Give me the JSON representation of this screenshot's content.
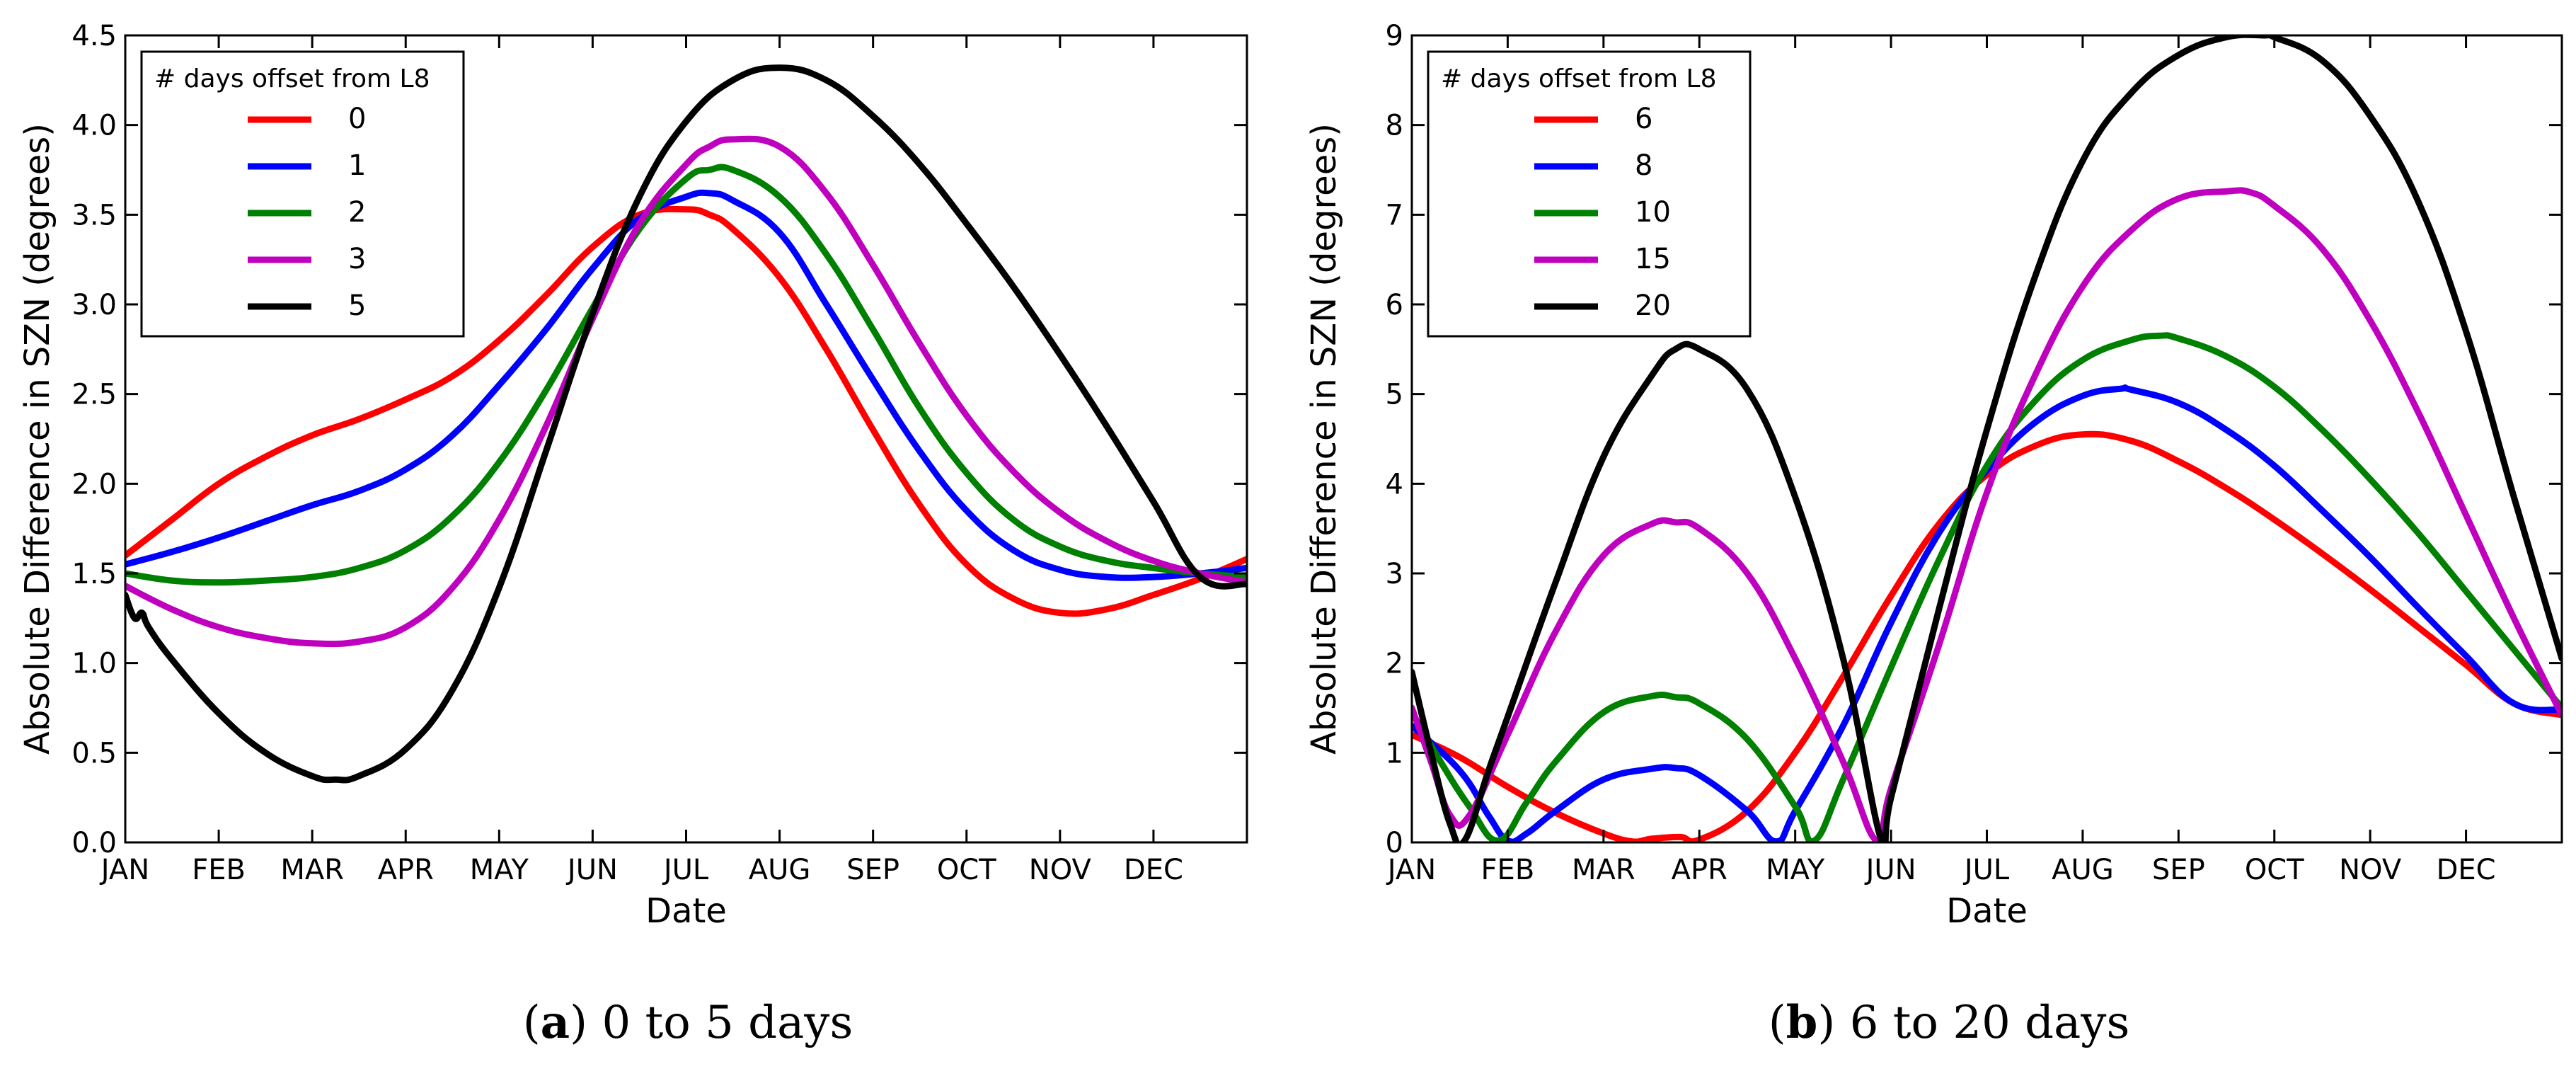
{
  "chart_data": [
    {
      "type": "line",
      "panel_label": "a",
      "caption": "0 to 5 days",
      "xlabel": "Date",
      "ylabel": "Absolute Difference in SZN (degrees)",
      "xlim": [
        0,
        12
      ],
      "ylim": [
        0,
        4.5
      ],
      "x_ticks": [
        0,
        1,
        2,
        3,
        4,
        5,
        6,
        7,
        8,
        9,
        10,
        11
      ],
      "x_tick_labels": [
        "JAN",
        "FEB",
        "MAR",
        "APR",
        "MAY",
        "JUN",
        "JUL",
        "AUG",
        "SEP",
        "OCT",
        "NOV",
        "DEC"
      ],
      "y_ticks": [
        0,
        0.5,
        1,
        1.5,
        2,
        2.5,
        3,
        3.5,
        4,
        4.5
      ],
      "y_tick_labels": [
        "0.0",
        "0.5",
        "1.0",
        "1.5",
        "2.0",
        "2.5",
        "3.0",
        "3.5",
        "4.0",
        "4.5"
      ],
      "grid": false,
      "legend": {
        "title": "# days offset from L8",
        "position": "top-left"
      },
      "series": [
        {
          "name": "0",
          "color": "#ff0000",
          "x": [
            0,
            0.5,
            1,
            1.5,
            2,
            2.5,
            3,
            3.5,
            4,
            4.5,
            5,
            5.5,
            6,
            6.25,
            6.5,
            7,
            7.5,
            8,
            8.5,
            9,
            9.5,
            10,
            10.5,
            11,
            11.5,
            12
          ],
          "y": [
            1.6,
            1.8,
            2.0,
            2.15,
            2.27,
            2.36,
            2.47,
            2.6,
            2.8,
            3.05,
            3.32,
            3.5,
            3.53,
            3.5,
            3.42,
            3.15,
            2.75,
            2.3,
            1.88,
            1.55,
            1.36,
            1.28,
            1.3,
            1.38,
            1.47,
            1.58
          ]
        },
        {
          "name": "1",
          "color": "#0000ff",
          "x": [
            0,
            0.5,
            1,
            1.5,
            2,
            2.5,
            3,
            3.5,
            4,
            4.5,
            5,
            5.5,
            6,
            6.25,
            6.5,
            7,
            7.5,
            8,
            8.5,
            9,
            9.5,
            10,
            10.5,
            11,
            11.5,
            12
          ],
          "y": [
            1.55,
            1.62,
            1.7,
            1.79,
            1.88,
            1.96,
            2.08,
            2.27,
            2.55,
            2.86,
            3.2,
            3.48,
            3.6,
            3.62,
            3.58,
            3.4,
            3.0,
            2.58,
            2.18,
            1.85,
            1.63,
            1.52,
            1.48,
            1.48,
            1.5,
            1.53
          ]
        },
        {
          "name": "2",
          "color": "#008000",
          "x": [
            0,
            0.5,
            1,
            1.5,
            2,
            2.5,
            3,
            3.5,
            4,
            4.5,
            5,
            5.5,
            6,
            6.25,
            6.5,
            7,
            7.5,
            8,
            8.5,
            9,
            9.5,
            10,
            10.5,
            11,
            11.5,
            12
          ],
          "y": [
            1.5,
            1.46,
            1.45,
            1.46,
            1.48,
            1.53,
            1.63,
            1.82,
            2.12,
            2.52,
            2.98,
            3.42,
            3.7,
            3.75,
            3.75,
            3.6,
            3.28,
            2.86,
            2.42,
            2.06,
            1.8,
            1.65,
            1.57,
            1.53,
            1.5,
            1.48
          ]
        },
        {
          "name": "3",
          "color": "#bf00bf",
          "x": [
            0,
            0.5,
            1,
            1.5,
            2,
            2.5,
            3,
            3.5,
            4,
            4.5,
            5,
            5.5,
            6,
            6.25,
            6.5,
            7,
            7.5,
            8,
            8.5,
            9,
            9.5,
            10,
            10.5,
            11,
            11.5,
            12
          ],
          "y": [
            1.43,
            1.3,
            1.2,
            1.14,
            1.11,
            1.12,
            1.2,
            1.42,
            1.8,
            2.32,
            2.92,
            3.45,
            3.78,
            3.88,
            3.92,
            3.88,
            3.62,
            3.22,
            2.78,
            2.38,
            2.07,
            1.84,
            1.68,
            1.57,
            1.5,
            1.45
          ]
        },
        {
          "name": "5",
          "color": "#000000",
          "x": [
            0,
            0.1,
            0.18,
            0.25,
            0.5,
            1,
            1.5,
            2,
            2.25,
            2.5,
            3,
            3.5,
            4,
            4.5,
            5,
            5.5,
            6,
            6.5,
            7,
            7.5,
            8,
            8.5,
            9,
            9.5,
            10,
            10.5,
            11,
            11.5,
            12
          ],
          "y": [
            1.38,
            1.25,
            1.28,
            1.2,
            1.02,
            0.72,
            0.5,
            0.37,
            0.35,
            0.37,
            0.52,
            0.85,
            1.42,
            2.18,
            2.95,
            3.6,
            4.02,
            4.25,
            4.32,
            4.25,
            4.05,
            3.78,
            3.45,
            3.1,
            2.72,
            2.32,
            1.9,
            1.48,
            1.44
          ]
        }
      ]
    },
    {
      "type": "line",
      "panel_label": "b",
      "caption": "6 to 20 days",
      "xlabel": "Date",
      "ylabel": "Absolute Difference in SZN (degrees)",
      "xlim": [
        0,
        12
      ],
      "ylim": [
        0,
        9
      ],
      "x_ticks": [
        0,
        1,
        2,
        3,
        4,
        5,
        6,
        7,
        8,
        9,
        10,
        11
      ],
      "x_tick_labels": [
        "JAN",
        "FEB",
        "MAR",
        "APR",
        "MAY",
        "JUN",
        "JUL",
        "AUG",
        "SEP",
        "OCT",
        "NOV",
        "DEC"
      ],
      "y_ticks": [
        0,
        1,
        2,
        3,
        4,
        5,
        6,
        7,
        8,
        9
      ],
      "y_tick_labels": [
        "0",
        "1",
        "2",
        "3",
        "4",
        "5",
        "6",
        "7",
        "8",
        "9"
      ],
      "grid": false,
      "legend": {
        "title": "# days offset from L8",
        "position": "top-left"
      },
      "series": [
        {
          "name": "6",
          "color": "#ff0000",
          "x": [
            0,
            0.5,
            1,
            1.5,
            2,
            2.3,
            2.5,
            2.8,
            3,
            3.5,
            4,
            4.5,
            5,
            5.5,
            6,
            6.5,
            7,
            7.5,
            8,
            8.5,
            9,
            9.5,
            10,
            10.5,
            11,
            11.5,
            12
          ],
          "y": [
            1.2,
            0.95,
            0.62,
            0.33,
            0.1,
            0.01,
            0.04,
            0.06,
            0.03,
            0.35,
            1.0,
            1.85,
            2.75,
            3.55,
            4.1,
            4.42,
            4.55,
            4.48,
            4.25,
            3.95,
            3.6,
            3.22,
            2.82,
            2.4,
            1.98,
            1.55,
            1.42
          ]
        },
        {
          "name": "8",
          "color": "#0000ff",
          "x": [
            0,
            0.5,
            0.8,
            1,
            1.2,
            1.5,
            2,
            2.5,
            2.75,
            3,
            3.5,
            3.8,
            4,
            4.5,
            5,
            5.5,
            6,
            6.5,
            7,
            7.4,
            7.5,
            8,
            8.5,
            9,
            9.5,
            10,
            10.5,
            11,
            11.5,
            12
          ],
          "y": [
            1.3,
            0.8,
            0.3,
            0.02,
            0.1,
            0.35,
            0.7,
            0.82,
            0.83,
            0.75,
            0.35,
            0.01,
            0.35,
            1.3,
            2.45,
            3.45,
            4.15,
            4.68,
            4.98,
            5.06,
            5.05,
            4.9,
            4.6,
            4.2,
            3.7,
            3.18,
            2.62,
            2.08,
            1.55,
            1.48
          ]
        },
        {
          "name": "10",
          "color": "#008000",
          "x": [
            0,
            0.3,
            0.6,
            0.9,
            1.2,
            1.5,
            2,
            2.5,
            2.75,
            3,
            3.5,
            4,
            4.2,
            4.5,
            5,
            5.5,
            6,
            6.5,
            7,
            7.5,
            7.8,
            8,
            8.5,
            9,
            9.5,
            10,
            10.5,
            11,
            11.5,
            12
          ],
          "y": [
            1.45,
            0.9,
            0.4,
            0.02,
            0.45,
            0.9,
            1.45,
            1.63,
            1.62,
            1.55,
            1.15,
            0.4,
            0.02,
            0.7,
            1.95,
            3.15,
            4.2,
            4.92,
            5.38,
            5.6,
            5.65,
            5.62,
            5.42,
            5.08,
            4.6,
            4.05,
            3.45,
            2.8,
            2.15,
            1.5
          ]
        },
        {
          "name": "15",
          "color": "#bf00bf",
          "x": [
            0,
            0.2,
            0.4,
            0.6,
            1,
            1.5,
            2,
            2.5,
            2.75,
            3,
            3.5,
            4,
            4.5,
            4.85,
            5,
            5.5,
            6,
            6.5,
            7,
            7.5,
            8,
            8.5,
            8.75,
            9,
            9.5,
            10,
            10.5,
            11,
            11.5,
            12
          ],
          "y": [
            1.5,
            0.9,
            0.3,
            0.3,
            1.2,
            2.35,
            3.2,
            3.55,
            3.57,
            3.5,
            3.0,
            2.05,
            0.9,
            0.02,
            0.6,
            2.2,
            3.9,
            5.2,
            6.2,
            6.82,
            7.18,
            7.26,
            7.25,
            7.1,
            6.62,
            5.82,
            4.8,
            3.65,
            2.5,
            1.42
          ]
        },
        {
          "name": "20",
          "color": "#000000",
          "x": [
            0,
            0.2,
            0.4,
            0.55,
            0.8,
            1,
            1.5,
            2,
            2.5,
            2.75,
            3,
            3.5,
            4,
            4.5,
            4.9,
            5,
            5.5,
            6,
            6.5,
            7,
            7.5,
            8,
            8.5,
            8.9,
            9,
            9.5,
            10,
            10.5,
            11,
            11.5,
            12
          ],
          "y": [
            1.9,
            1.0,
            0.2,
            0.02,
            0.8,
            1.4,
            2.9,
            4.3,
            5.2,
            5.5,
            5.5,
            5.05,
            3.85,
            2.05,
            0.02,
            0.5,
            2.6,
            4.6,
            6.3,
            7.6,
            8.35,
            8.78,
            8.98,
            9.0,
            8.98,
            8.72,
            8.1,
            7.15,
            5.7,
            3.85,
            2.05
          ]
        }
      ]
    }
  ]
}
